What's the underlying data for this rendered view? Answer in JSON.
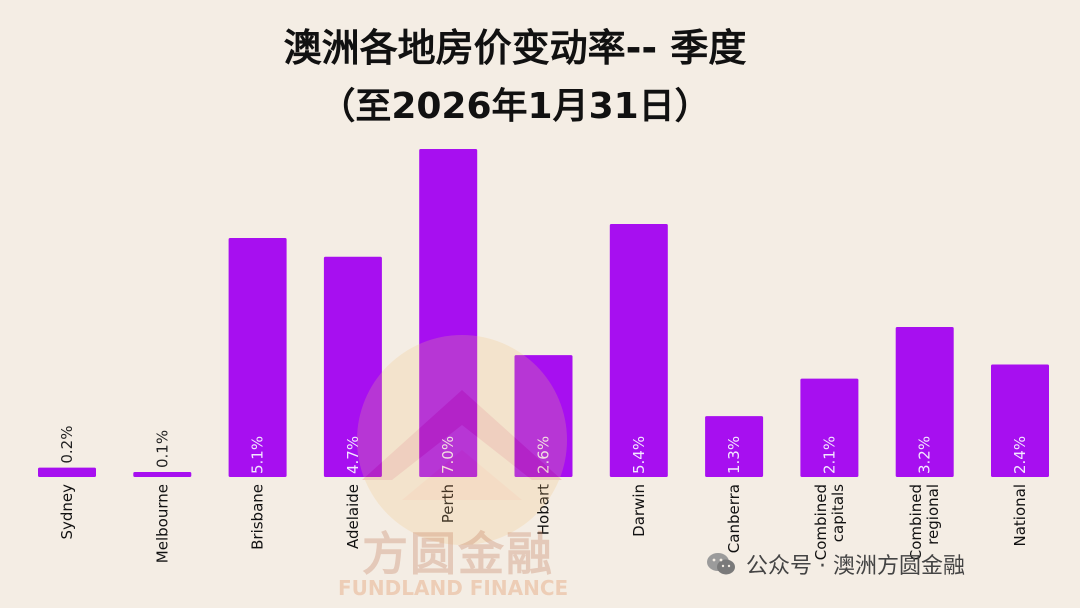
{
  "chart_data": {
    "type": "bar",
    "title": "澳洲各地房价变动率-- 季度",
    "subtitle": "（至2026年1月31日）",
    "categories": [
      "Sydney",
      "Melbourne",
      "Brisbane",
      "Adelaide",
      "Perth",
      "Hobart",
      "Darwin",
      "Canberra",
      "Combined capitals",
      "Combined regional",
      "National"
    ],
    "category_lines": [
      [
        "Sydney"
      ],
      [
        "Melbourne"
      ],
      [
        "Brisbane"
      ],
      [
        "Adelaide"
      ],
      [
        "Perth"
      ],
      [
        "Hobart"
      ],
      [
        "Darwin"
      ],
      [
        "Canberra"
      ],
      [
        "Combined",
        "capitals"
      ],
      [
        "Combined",
        "regional"
      ],
      [
        "National"
      ]
    ],
    "values": [
      0.2,
      0.1,
      5.1,
      4.7,
      7.0,
      2.6,
      5.4,
      1.3,
      2.1,
      3.2,
      2.4
    ],
    "value_labels": [
      "0.2%",
      "0.1%",
      "5.1%",
      "4.7%",
      "7.0%",
      "2.6%",
      "5.4%",
      "1.3%",
      "2.1%",
      "3.2%",
      "2.4%"
    ],
    "bar_color": "#a70ff0",
    "ylim": [
      0,
      7.0
    ],
    "grid": false,
    "legend": "none"
  },
  "watermark": {
    "logo_text": "方圆金融",
    "logo_subtext": "FUNDLAND FINANCE",
    "wechat_text": "公众号 · 澳洲方圆金融",
    "wechat_icon": "wechat-icon"
  }
}
